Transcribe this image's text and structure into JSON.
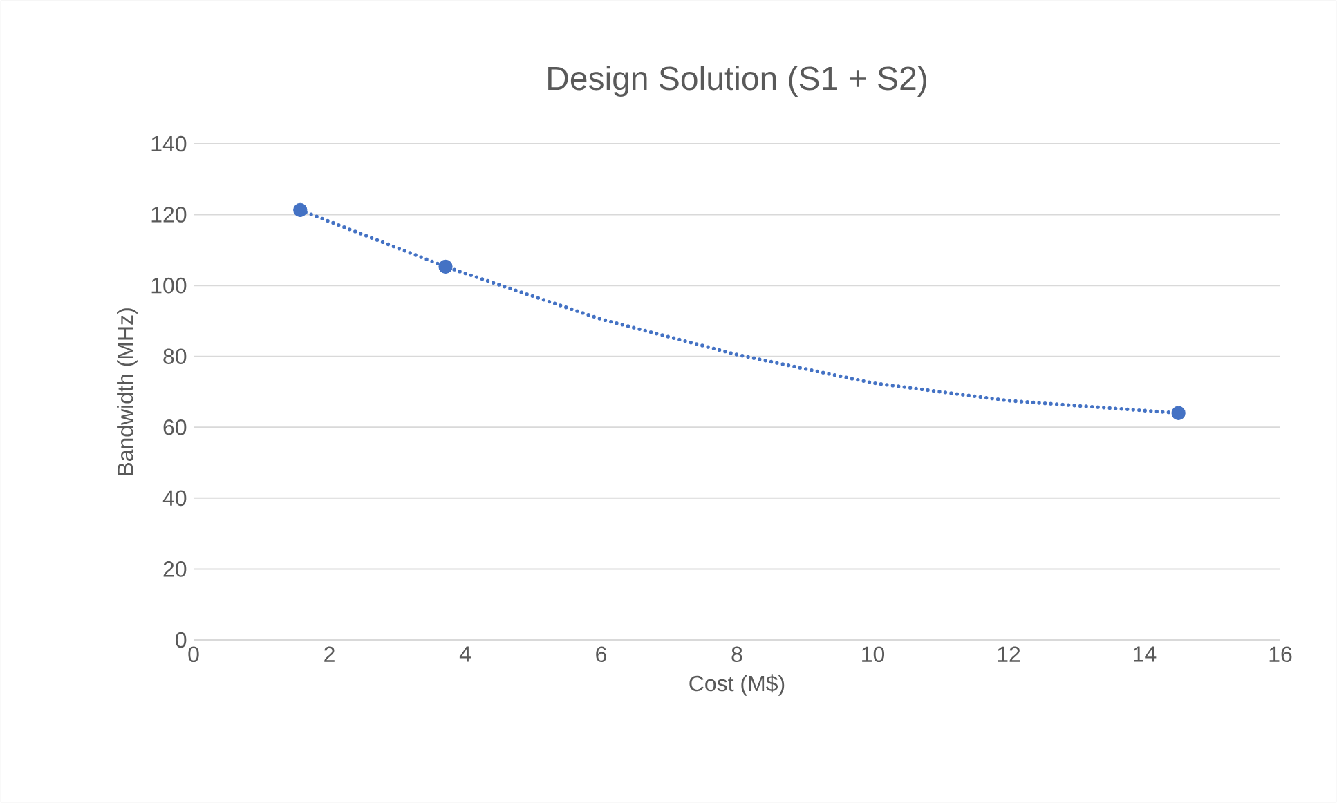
{
  "chart_data": {
    "type": "scatter",
    "title": "Design Solution (S1 + S2)",
    "xlabel": "Cost (M$)",
    "ylabel": "Bandwidth (MHz)",
    "series": [
      {
        "color": "#4472c4",
        "marker": "circle",
        "x": [
          1.57,
          3.71,
          14.5
        ],
        "values": [
          121.3,
          105.3,
          64.0
        ]
      },
      {
        "type": "line",
        "color": "#4472c4",
        "line_style": "dotted",
        "marker": "none",
        "x": [
          1.57,
          3.71,
          6,
          8,
          10,
          12,
          14.5
        ],
        "values": [
          121.3,
          105.3,
          90.5,
          80.5,
          72.5,
          67.5,
          64.0
        ]
      }
    ],
    "xlim": [
      0,
      16
    ],
    "xticks": [
      0,
      2,
      4,
      6,
      8,
      10,
      12,
      14,
      16
    ],
    "ylim": [
      0,
      140
    ],
    "yticks": [
      0,
      20,
      40,
      60,
      80,
      100,
      120,
      140
    ],
    "grid": "y"
  }
}
